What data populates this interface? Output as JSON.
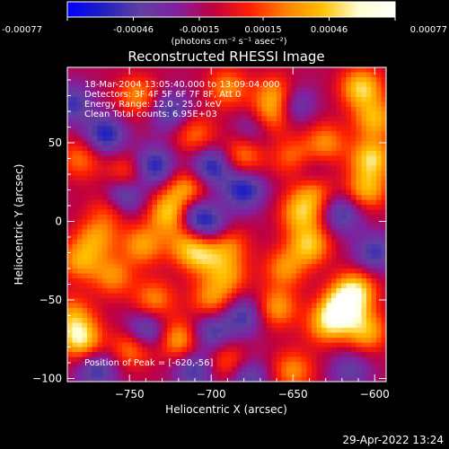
{
  "colorbar": {
    "ticks": [
      "-0.00077",
      "-0.00046",
      "-0.00015",
      "0.00015",
      "0.00046",
      "0.00077"
    ],
    "tick_values": [
      -0.00077,
      -0.00046,
      -0.00015,
      0.00015,
      0.00046,
      0.00077
    ],
    "unit_label": "(photons cm⁻² s⁻¹ asec⁻²)",
    "stops": [
      "#0000ff",
      "#2020c0",
      "#6040a0",
      "#8020a0",
      "#c00040",
      "#ff2000",
      "#ff8000",
      "#ffc000",
      "#ffffd0",
      "#ffffff"
    ]
  },
  "chart_data": {
    "type": "heatmap",
    "title": "Reconstructed RHESSI Image",
    "xlabel": "Heliocentric X (arcsec)",
    "ylabel": "Heliocentric Y (arcsec)",
    "xlim": [
      -788,
      -593
    ],
    "ylim": [
      -102,
      98
    ],
    "x_ticks": [
      "−750",
      "−700",
      "−650",
      "−600"
    ],
    "x_tick_values": [
      -750,
      -700,
      -650,
      -600
    ],
    "y_ticks": [
      "50",
      "0",
      "−50",
      "−100"
    ],
    "y_tick_values": [
      50,
      0,
      -50,
      -100
    ],
    "annotations": [
      "18-Mar-2004 13:05:40.000 to 13:09:04.000",
      "Detectors: 3F 4F 5F 6F 7F 8F, Att 0",
      "Energy Range: 12.0 - 25.0 keV",
      "Clean    Total counts: 6.95E+03"
    ],
    "peak_label": "Position of Peak = [-620,-56]",
    "peak": [
      -620,
      -56
    ],
    "value_range": [
      -0.00077,
      0.00077
    ],
    "blobs": [
      {
        "x": -620,
        "y": -56,
        "v": 0.00077
      },
      {
        "x": -612,
        "y": -44,
        "v": 0.0006
      },
      {
        "x": -630,
        "y": -66,
        "v": 0.00045
      },
      {
        "x": -605,
        "y": -70,
        "v": 0.0005
      },
      {
        "x": -602,
        "y": 40,
        "v": 0.0006
      },
      {
        "x": -600,
        "y": 65,
        "v": 0.0005
      },
      {
        "x": -608,
        "y": 85,
        "v": 0.0006
      },
      {
        "x": -605,
        "y": 20,
        "v": 0.0005
      },
      {
        "x": -638,
        "y": 20,
        "v": 0.00045
      },
      {
        "x": -645,
        "y": 5,
        "v": 0.0005
      },
      {
        "x": -640,
        "y": -15,
        "v": 0.00055
      },
      {
        "x": -655,
        "y": -30,
        "v": 0.0004
      },
      {
        "x": -660,
        "y": -55,
        "v": 0.00045
      },
      {
        "x": -665,
        "y": 65,
        "v": 0.0005
      },
      {
        "x": -660,
        "y": 80,
        "v": 0.0005
      },
      {
        "x": -650,
        "y": 40,
        "v": 0.00035
      },
      {
        "x": -630,
        "y": 50,
        "v": 0.0004
      },
      {
        "x": -725,
        "y": 5,
        "v": 0.00065
      },
      {
        "x": -715,
        "y": 20,
        "v": 0.0005
      },
      {
        "x": -760,
        "y": 10,
        "v": 0.0005
      },
      {
        "x": -770,
        "y": -10,
        "v": 0.0004
      },
      {
        "x": -742,
        "y": -15,
        "v": 0.00045
      },
      {
        "x": -715,
        "y": -15,
        "v": 0.0004
      },
      {
        "x": -705,
        "y": -22,
        "v": 0.00045
      },
      {
        "x": -690,
        "y": -15,
        "v": 0.0004
      },
      {
        "x": -780,
        "y": -25,
        "v": 0.00045
      },
      {
        "x": -760,
        "y": -35,
        "v": 0.0004
      },
      {
        "x": -735,
        "y": -50,
        "v": 0.0004
      },
      {
        "x": -700,
        "y": -50,
        "v": 0.0004
      },
      {
        "x": -690,
        "y": -35,
        "v": 0.0004
      },
      {
        "x": -780,
        "y": -75,
        "v": 0.00065
      },
      {
        "x": -785,
        "y": -60,
        "v": 0.0004
      },
      {
        "x": -748,
        "y": -80,
        "v": 0.00045
      },
      {
        "x": -720,
        "y": -75,
        "v": 0.0005
      },
      {
        "x": -690,
        "y": -90,
        "v": 0.00035
      },
      {
        "x": -650,
        "y": -95,
        "v": 0.0004
      },
      {
        "x": -680,
        "y": 42,
        "v": 0.0004
      },
      {
        "x": -710,
        "y": 55,
        "v": 0.00035
      },
      {
        "x": -745,
        "y": 80,
        "v": 0.0004
      },
      {
        "x": -780,
        "y": 40,
        "v": 0.00035
      },
      {
        "x": -752,
        "y": 30,
        "v": 0.00035
      },
      {
        "x": -690,
        "y": 85,
        "v": 0.0004
      },
      {
        "x": -755,
        "y": 15,
        "v": -0.0007
      },
      {
        "x": -735,
        "y": 35,
        "v": -0.0005
      },
      {
        "x": -700,
        "y": 35,
        "v": -0.0005
      },
      {
        "x": -712,
        "y": 5,
        "v": -0.0005
      },
      {
        "x": -700,
        "y": -5,
        "v": -0.0004
      },
      {
        "x": -765,
        "y": 55,
        "v": -0.0005
      },
      {
        "x": -725,
        "y": 70,
        "v": -0.0004
      },
      {
        "x": -680,
        "y": 20,
        "v": -0.0005
      },
      {
        "x": -672,
        "y": 60,
        "v": -0.0004
      },
      {
        "x": -650,
        "y": 75,
        "v": -0.0004
      },
      {
        "x": -620,
        "y": 5,
        "v": -0.0004
      },
      {
        "x": -600,
        "y": -20,
        "v": -0.0004
      },
      {
        "x": -740,
        "y": -70,
        "v": -0.0005
      },
      {
        "x": -700,
        "y": -70,
        "v": -0.0004
      },
      {
        "x": -680,
        "y": -60,
        "v": -0.0004
      },
      {
        "x": -678,
        "y": -100,
        "v": -0.0004
      },
      {
        "x": -770,
        "y": -95,
        "v": -0.0004
      },
      {
        "x": -710,
        "y": -95,
        "v": -0.0004
      },
      {
        "x": -615,
        "y": -95,
        "v": -0.0003
      },
      {
        "x": -785,
        "y": 75,
        "v": -0.0004
      },
      {
        "x": -640,
        "y": 30,
        "v": -0.0003
      }
    ]
  },
  "footer": {
    "timestamp": "29-Apr-2022 13:24"
  }
}
